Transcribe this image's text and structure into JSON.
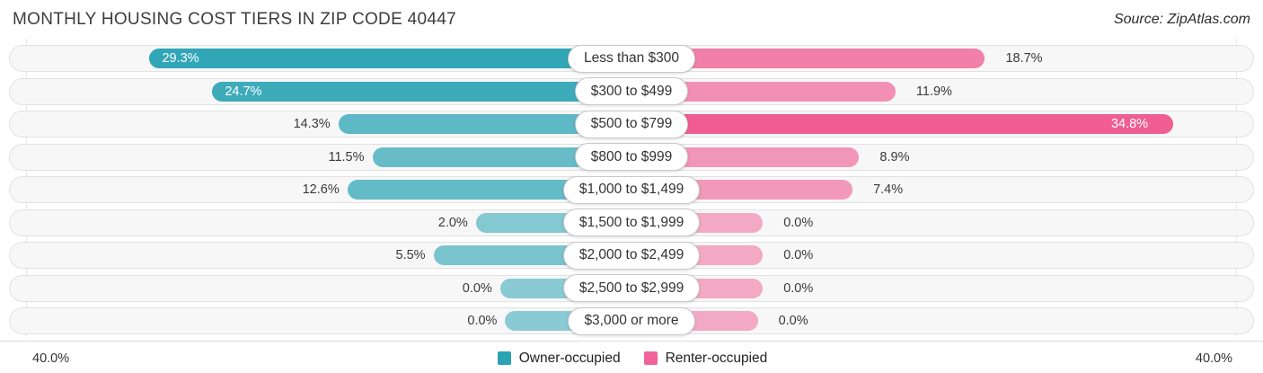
{
  "header": {
    "title": "MONTHLY HOUSING COST TIERS IN ZIP CODE 40447",
    "source": "Source: ZipAtlas.com"
  },
  "chart_data": {
    "type": "bar",
    "orientation": "diverging-horizontal",
    "title": "Monthly Housing Cost Tiers in Zip Code 40447",
    "categories": [
      "Less than $300",
      "$300 to $499",
      "$500 to $799",
      "$800 to $999",
      "$1,000 to $1,499",
      "$1,500 to $1,999",
      "$2,000 to $2,499",
      "$2,500 to $2,999",
      "$3,000 or more"
    ],
    "series": [
      {
        "name": "Owner-occupied",
        "side": "left",
        "color": "#2AA4B5",
        "base_rgb": "30,158,177",
        "values": [
          29.3,
          24.7,
          14.3,
          11.5,
          12.6,
          2.0,
          5.5,
          0.0,
          0.0
        ]
      },
      {
        "name": "Renter-occupied",
        "side": "right",
        "color": "#F0649C",
        "base_rgb": "239,92,145",
        "values": [
          18.7,
          11.9,
          34.8,
          8.9,
          7.4,
          0.0,
          0.0,
          0.0,
          0.0
        ]
      }
    ],
    "axis": {
      "max": 40,
      "left_max_label": "40.0%",
      "right_max_label": "40.0%",
      "grid": true
    },
    "legend_position": "bottom-center",
    "value_label_format": "{value}%"
  },
  "legend": {
    "items": [
      {
        "label": "Owner-occupied",
        "color": "#2AA4B5"
      },
      {
        "label": "Renter-occupied",
        "color": "#F0649C"
      }
    ]
  }
}
